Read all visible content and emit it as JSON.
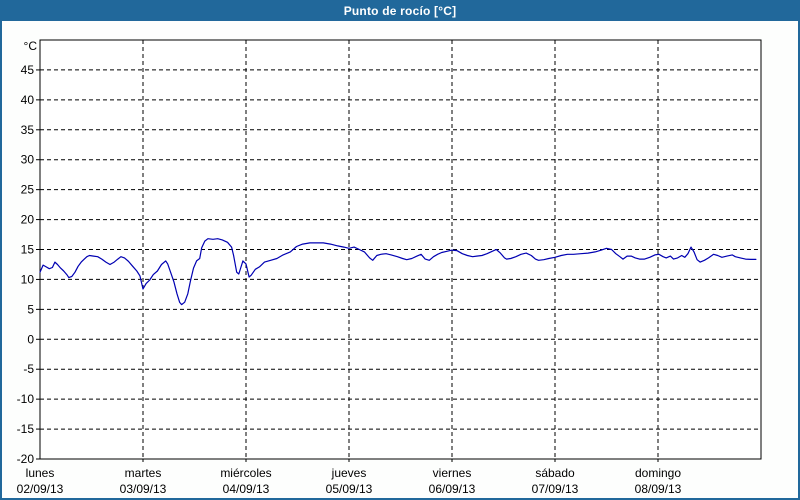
{
  "window": {
    "title": "Punto de rocío [°C]",
    "colors": {
      "frame": "#21689b",
      "titlebar_bg": "#21689b",
      "title_text": "#ffffff",
      "page_bg": "#fdfefd",
      "plot_bg": "#ffffff",
      "axis": "#000000",
      "grid": "#000000",
      "tick_text": "#000000"
    }
  },
  "chart_data": {
    "type": "line",
    "title": "Punto de rocío [°C]",
    "ylabel": "",
    "xlabel": "",
    "y_unit_label": "°C",
    "ylim": [
      -20,
      50
    ],
    "yticks": [
      45,
      40,
      35,
      30,
      25,
      20,
      15,
      10,
      5,
      0,
      -5,
      -10,
      -15,
      -20
    ],
    "grid": "dashed",
    "legend_position": "none",
    "x_days": [
      {
        "name": "lunes",
        "date": "02/09/13"
      },
      {
        "name": "martes",
        "date": "03/09/13"
      },
      {
        "name": "miércoles",
        "date": "04/09/13"
      },
      {
        "name": "jueves",
        "date": "05/09/13"
      },
      {
        "name": "viernes",
        "date": "06/09/13"
      },
      {
        "name": "sábado",
        "date": "07/09/13"
      },
      {
        "name": "domingo",
        "date": "08/09/13"
      }
    ],
    "series": [
      {
        "name": "Punto de rocío",
        "color": "#0000b2",
        "x_days_fraction": [
          0,
          0.03,
          0.06,
          0.09,
          0.12,
          0.145,
          0.17,
          0.2,
          0.23,
          0.26,
          0.28,
          0.31,
          0.34,
          0.37,
          0.4,
          0.43,
          0.455,
          0.48,
          0.52,
          0.56,
          0.6,
          0.64,
          0.68,
          0.72,
          0.755,
          0.785,
          0.82,
          0.86,
          0.9,
          0.94,
          0.97,
          1.0,
          1.03,
          1.065,
          1.1,
          1.14,
          1.18,
          1.22,
          1.24,
          1.27,
          1.3,
          1.33,
          1.355,
          1.375,
          1.405,
          1.435,
          1.46,
          1.49,
          1.52,
          1.55,
          1.57,
          1.6,
          1.63,
          1.68,
          1.725,
          1.77,
          1.82,
          1.86,
          1.88,
          1.91,
          1.93,
          1.97,
          2.0,
          2.03,
          2.05,
          2.09,
          2.13,
          2.18,
          2.24,
          2.3,
          2.36,
          2.43,
          2.49,
          2.55,
          2.62,
          2.68,
          2.75,
          2.82,
          2.89,
          2.95,
          3.0,
          3.05,
          3.1,
          3.15,
          3.2,
          3.23,
          3.27,
          3.31,
          3.36,
          3.41,
          3.47,
          3.52,
          3.56,
          3.61,
          3.66,
          3.7,
          3.74,
          3.78,
          3.82,
          3.86,
          3.9,
          3.95,
          4.0,
          4.05,
          4.1,
          4.15,
          4.2,
          4.24,
          4.29,
          4.34,
          4.39,
          4.43,
          4.47,
          4.51,
          4.53,
          4.57,
          4.62,
          4.67,
          4.72,
          4.77,
          4.81,
          4.84,
          4.89,
          4.94,
          5.0,
          5.06,
          5.12,
          5.18,
          5.25,
          5.32,
          5.39,
          5.45,
          5.5,
          5.55,
          5.59,
          5.63,
          5.66,
          5.7,
          5.74,
          5.78,
          5.82,
          5.87,
          5.92,
          5.97,
          6.01,
          6.05,
          6.08,
          6.12,
          6.15,
          6.19,
          6.23,
          6.26,
          6.29,
          6.32,
          6.35,
          6.38,
          6.41,
          6.45,
          6.49,
          6.54,
          6.58,
          6.62,
          6.67,
          6.72,
          6.75,
          6.8,
          6.85,
          6.9,
          6.95
        ],
        "values_c": [
          11.2,
          12.4,
          12.1,
          11.8,
          12.0,
          12.9,
          12.5,
          11.9,
          11.4,
          10.8,
          10.3,
          10.5,
          11.2,
          12.2,
          12.9,
          13.4,
          13.8,
          14.0,
          13.9,
          13.8,
          13.4,
          12.9,
          12.5,
          12.9,
          13.4,
          13.8,
          13.6,
          13.0,
          12.2,
          11.4,
          10.6,
          8.4,
          9.3,
          9.9,
          10.8,
          11.4,
          12.5,
          13.1,
          12.6,
          11.1,
          9.6,
          7.6,
          6.2,
          5.8,
          6.2,
          7.6,
          9.7,
          11.9,
          13.1,
          13.5,
          15.3,
          16.4,
          16.8,
          16.7,
          16.8,
          16.6,
          16.2,
          15.4,
          14.0,
          11.2,
          10.9,
          13.1,
          12.6,
          10.4,
          10.7,
          11.7,
          12.1,
          12.9,
          13.2,
          13.5,
          14.1,
          14.6,
          15.5,
          15.9,
          16.1,
          16.1,
          16.1,
          15.9,
          15.6,
          15.4,
          15.2,
          15.4,
          15.0,
          14.6,
          13.6,
          13.2,
          14.0,
          14.2,
          14.3,
          14.1,
          13.8,
          13.5,
          13.3,
          13.5,
          13.9,
          14.2,
          13.4,
          13.2,
          13.8,
          14.2,
          14.5,
          14.7,
          14.9,
          14.8,
          14.3,
          14.0,
          13.8,
          13.9,
          14.0,
          14.3,
          14.7,
          15.0,
          14.4,
          13.6,
          13.4,
          13.5,
          13.8,
          14.2,
          14.4,
          14.0,
          13.4,
          13.2,
          13.3,
          13.5,
          13.7,
          14.0,
          14.2,
          14.2,
          14.3,
          14.4,
          14.6,
          14.9,
          15.2,
          15.0,
          14.3,
          13.8,
          13.4,
          13.9,
          13.9,
          13.6,
          13.4,
          13.4,
          13.7,
          14.1,
          14.2,
          13.8,
          13.6,
          13.9,
          13.4,
          13.6,
          14.0,
          13.7,
          14.3,
          15.4,
          14.6,
          13.3,
          12.9,
          13.2,
          13.6,
          14.2,
          14.0,
          13.7,
          13.9,
          14.1,
          13.8,
          13.6,
          13.4,
          13.35,
          13.35
        ]
      }
    ]
  }
}
